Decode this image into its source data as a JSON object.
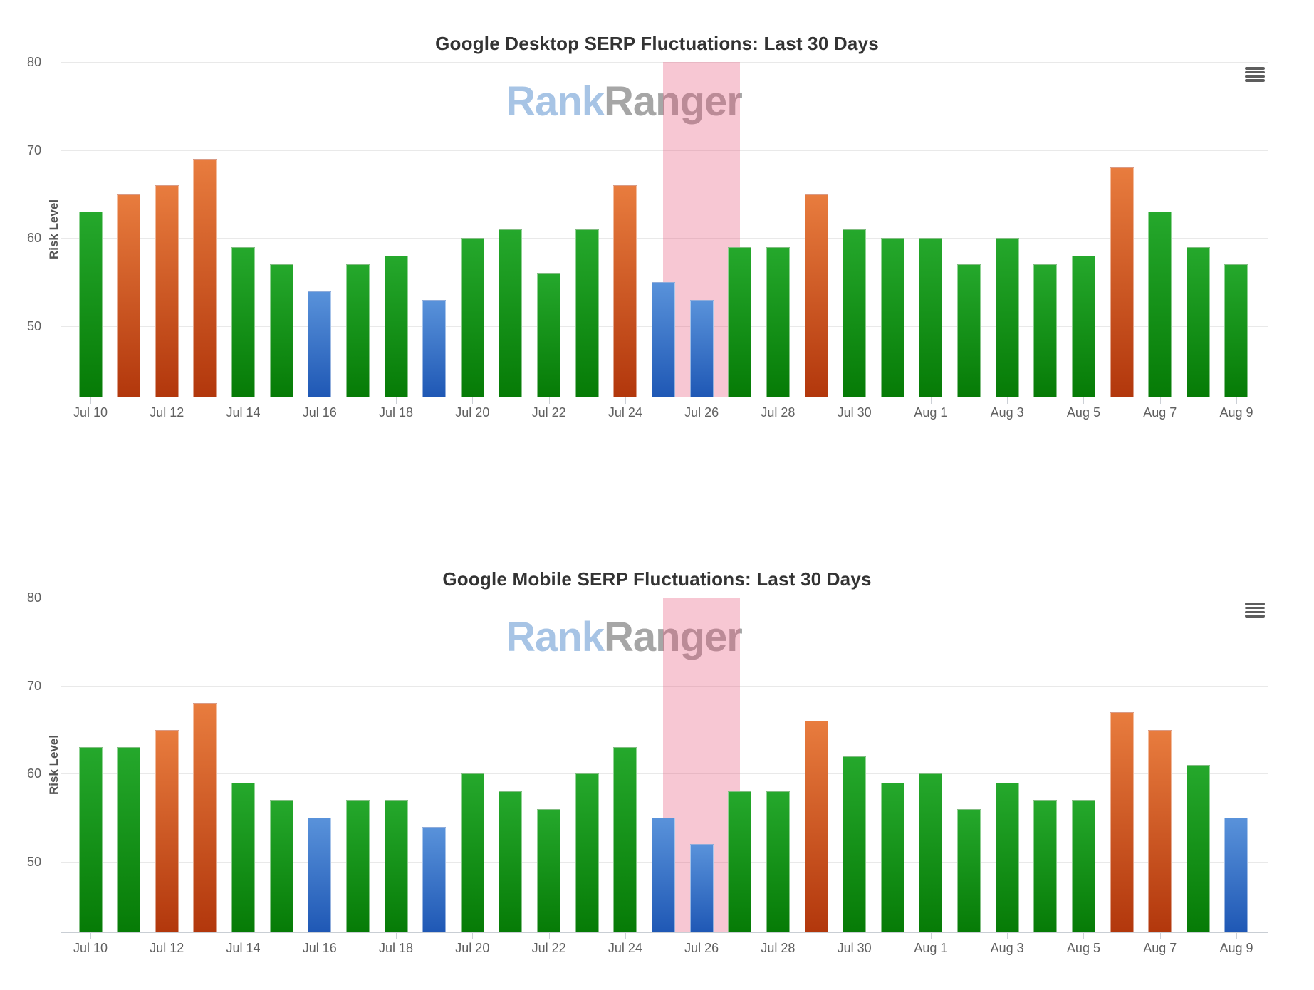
{
  "watermark": {
    "blue": "Rank",
    "gray": "Ranger"
  },
  "icons": {
    "chart_menu": "hamburger-icon"
  },
  "colors": {
    "green_top": "#25a82c",
    "green_bottom": "#067b06",
    "orange_top": "#e87c3e",
    "orange_bottom": "#b2370c",
    "blue_top": "#5992da",
    "blue_bottom": "#1f58b5",
    "plot_band": "rgba(231,84,120,0.33)",
    "gridline": "#e9e9e9",
    "axis_line": "#c9ced4",
    "tick_label": "#606060",
    "title": "#333333",
    "watermark_blue": "#a7c4e5",
    "watermark_gray": "#a6a6a6",
    "menu_icon": "#5d5d5d"
  },
  "chart_data": [
    {
      "type": "bar",
      "title": "Google Desktop SERP Fluctuations: Last 30 Days",
      "xlabel": "",
      "ylabel": "Risk Level",
      "ylim": [
        42,
        80
      ],
      "yticks": [
        80,
        70,
        60,
        50
      ],
      "grid": true,
      "legend": "none",
      "xtick_every": 2,
      "plot_band": {
        "from": "Jul 25",
        "to": "Jul 27"
      },
      "categories": [
        "Jul 10",
        "Jul 11",
        "Jul 12",
        "Jul 13",
        "Jul 14",
        "Jul 15",
        "Jul 16",
        "Jul 17",
        "Jul 18",
        "Jul 19",
        "Jul 20",
        "Jul 21",
        "Jul 22",
        "Jul 23",
        "Jul 24",
        "Jul 25",
        "Jul 26",
        "Jul 27",
        "Jul 28",
        "Jul 29",
        "Jul 30",
        "Jul 31",
        "Aug 1",
        "Aug 2",
        "Aug 3",
        "Aug 4",
        "Aug 5",
        "Aug 6",
        "Aug 7",
        "Aug 8",
        "Aug 9"
      ],
      "values": [
        63,
        65,
        66,
        69,
        59,
        57,
        54,
        57,
        58,
        53,
        60,
        61,
        56,
        61,
        66,
        55,
        53,
        59,
        59,
        65,
        61,
        60,
        60,
        57,
        60,
        57,
        58,
        68,
        63,
        59,
        57
      ],
      "bar_colors": [
        "green",
        "orange",
        "orange",
        "orange",
        "green",
        "green",
        "blue",
        "green",
        "green",
        "blue",
        "green",
        "green",
        "green",
        "green",
        "orange",
        "blue",
        "blue",
        "green",
        "green",
        "orange",
        "green",
        "green",
        "green",
        "green",
        "green",
        "green",
        "green",
        "orange",
        "green",
        "green",
        "green"
      ]
    },
    {
      "type": "bar",
      "title": "Google Mobile SERP Fluctuations: Last 30 Days",
      "xlabel": "",
      "ylabel": "Risk Level",
      "ylim": [
        42,
        80
      ],
      "yticks": [
        80,
        70,
        60,
        50
      ],
      "grid": true,
      "legend": "none",
      "xtick_every": 2,
      "plot_band": {
        "from": "Jul 25",
        "to": "Jul 27"
      },
      "categories": [
        "Jul 10",
        "Jul 11",
        "Jul 12",
        "Jul 13",
        "Jul 14",
        "Jul 15",
        "Jul 16",
        "Jul 17",
        "Jul 18",
        "Jul 19",
        "Jul 20",
        "Jul 21",
        "Jul 22",
        "Jul 23",
        "Jul 24",
        "Jul 25",
        "Jul 26",
        "Jul 27",
        "Jul 28",
        "Jul 29",
        "Jul 30",
        "Jul 31",
        "Aug 1",
        "Aug 2",
        "Aug 3",
        "Aug 4",
        "Aug 5",
        "Aug 6",
        "Aug 7",
        "Aug 8",
        "Aug 9"
      ],
      "values": [
        63,
        63,
        65,
        68,
        59,
        57,
        55,
        57,
        57,
        54,
        60,
        58,
        56,
        60,
        63,
        55,
        52,
        58,
        58,
        66,
        62,
        59,
        60,
        56,
        59,
        57,
        57,
        67,
        65,
        61,
        55
      ],
      "bar_colors": [
        "green",
        "green",
        "orange",
        "orange",
        "green",
        "green",
        "blue",
        "green",
        "green",
        "blue",
        "green",
        "green",
        "green",
        "green",
        "green",
        "blue",
        "blue",
        "green",
        "green",
        "orange",
        "green",
        "green",
        "green",
        "green",
        "green",
        "green",
        "green",
        "orange",
        "orange",
        "green",
        "blue"
      ]
    }
  ]
}
